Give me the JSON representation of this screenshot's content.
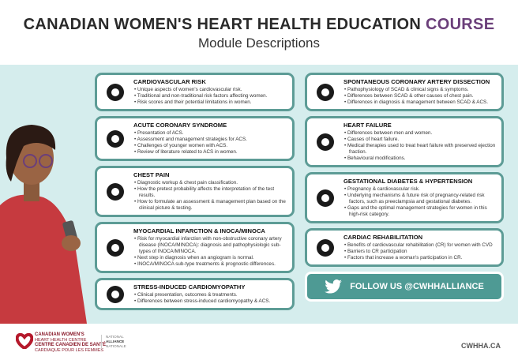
{
  "header": {
    "title_main": "CANADIAN WOMEN'S HEART HEALTH EDUCATION",
    "title_accent": "COURSE",
    "subtitle": "Module Descriptions"
  },
  "colors": {
    "accent": "#6b3f7a",
    "teal": "#4e9a94",
    "band": "#d5eded"
  },
  "modules": [
    {
      "title": "CARDIOVASCULAR RISK",
      "icon": "anatomical-heart-icon",
      "items": [
        "Unique aspects of women's cardiovascular risk.",
        "Traditional and non-traditional risk factors affecting women.",
        "Risk scores and their potential limitations in women."
      ]
    },
    {
      "title": "ACUTE CORONARY SYNDROME",
      "icon": "blocked-artery-icon",
      "items": [
        "Presentation of  ACS.",
        "Assessment and management strategies for ACS.",
        "Challenges of younger women with ACS.",
        "Review of literature related to ACS in women."
      ]
    },
    {
      "title": "CHEST PAIN",
      "icon": "chest-pain-person-icon",
      "items": [
        "Diagnostic workup & chest pain classification.",
        "How the pretest probability affects the interpretation of the test  results.",
        "How to formulate an assessment & management plan based on the clinical picture & testing."
      ]
    },
    {
      "title": "MYOCARDIAL INFARCTION & INOCA/MINOCA",
      "icon": "damaged-heart-icon",
      "items": [
        "Risk for myocardial infarction with non-obstructive coronary artery disease (INOCA/MINOCA): diagnosis and pathophysiologic sub-types of INOCA/MINOCA.",
        "Next step in diagnosis when an angiogram is normal.",
        "INOCA/MINOCA sub-type treatments & prognostic differences."
      ]
    },
    {
      "title": "STRESS-INDUCED CARDIOMYOPATHY",
      "icon": "stressed-person-icon",
      "items": [
        "Clinical presentation, outcomes & treatments.",
        "Differences between stress-induced cardiomyopathy & ACS."
      ]
    },
    {
      "title": "SPONTANEOUS CORONARY ARTERY DISSECTION",
      "icon": "torn-artery-icon",
      "items": [
        "Pathophysiology of SCAD &  clinical signs & symptoms.",
        "Differences between SCAD & other causes of chest pain.",
        "Differences in diagnosis & management between SCAD & ACS."
      ]
    },
    {
      "title": "HEART FAILURE",
      "icon": "broken-heart-icon",
      "items": [
        "Differences between men and women.",
        "Causes of heart failure.",
        "Medical therapies used to treat heart failure with preserved ejection fraction.",
        "Behavioural modifications."
      ]
    },
    {
      "title": "GESTATIONAL DIABETES & HYPERTENSION",
      "icon": "pregnant-woman-icon",
      "items": [
        "Pregnancy & cardiovascular risk.",
        "Underlying mechanisms & future risk of pregnancy-related risk factors, such as preeclampsia and gestational diabetes.",
        "Gaps and the optimal management strategies for women in this high-risk category."
      ]
    },
    {
      "title": "CARDIAC REHABILITATION",
      "icon": "doctor-patient-icon",
      "items": [
        "Benefits of cardiovascular rehabilitation (CR) for women with CVD",
        "Barriers to CR participation",
        "Factors that increase a woman's participation in CR."
      ]
    }
  ],
  "follow": {
    "label": "FOLLOW US @CWHHALLIANCE",
    "icon": "twitter-icon"
  },
  "footer": {
    "logo_lines": [
      "CANADIAN WOMEN'S",
      "HEART HEALTH CENTRE",
      "CENTRE CANADIEN DE SANTÉ",
      "CARDIAQUE POUR LES FEMMES"
    ],
    "alliance_lines": [
      "NATIONAL",
      "ALLIANCE",
      "NATIONALE"
    ],
    "url": "CWHHA.CA"
  }
}
